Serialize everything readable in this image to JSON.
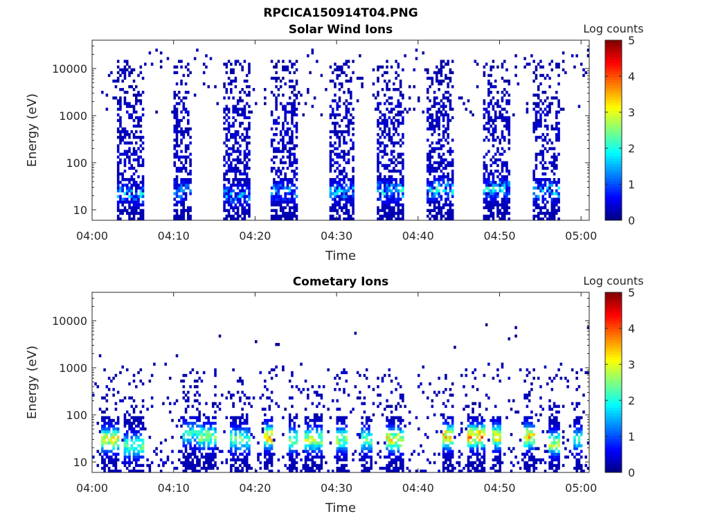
{
  "figure": {
    "title": "RPCICA150914T04.PNG"
  },
  "chart_data": [
    {
      "type": "heatmap",
      "title": "Solar Wind Ions",
      "xlabel": "Time",
      "ylabel": "Energy (eV)",
      "x_range": [
        "04:00",
        "05:01"
      ],
      "x_ticks": [
        "04:00",
        "04:10",
        "04:20",
        "04:30",
        "04:40",
        "04:50",
        "05:00"
      ],
      "y_scale": "log",
      "y_range": [
        6,
        40000
      ],
      "y_ticks": [
        "10",
        "100",
        "1000",
        "10000"
      ],
      "colorbar": {
        "label": "Log counts",
        "range": [
          0,
          5
        ],
        "ticks": [
          "0",
          "1",
          "2",
          "3",
          "4",
          "5"
        ],
        "colormap": "jet"
      },
      "bursts": [
        {
          "start": "04:03",
          "end": "04:06",
          "peak_energy_eV": 22,
          "peak_log_counts": 2.0
        },
        {
          "start": "04:10",
          "end": "04:12",
          "peak_energy_eV": 25,
          "peak_log_counts": 1.6
        },
        {
          "start": "04:16",
          "end": "04:19",
          "peak_energy_eV": 20,
          "peak_log_counts": 1.6
        },
        {
          "start": "04:22",
          "end": "04:25",
          "peak_energy_eV": 25,
          "peak_log_counts": 1.6
        },
        {
          "start": "04:29",
          "end": "04:32",
          "peak_energy_eV": 25,
          "peak_log_counts": 1.8
        },
        {
          "start": "04:35",
          "end": "04:38",
          "peak_energy_eV": 25,
          "peak_log_counts": 2.2
        },
        {
          "start": "04:41",
          "end": "04:44",
          "peak_energy_eV": 28,
          "peak_log_counts": 2.2
        },
        {
          "start": "04:48",
          "end": "04:51",
          "peak_energy_eV": 28,
          "peak_log_counts": 2.2
        },
        {
          "start": "04:54",
          "end": "04:57",
          "peak_energy_eV": 25,
          "peak_log_counts": 2.0
        }
      ]
    },
    {
      "type": "heatmap",
      "title": "Cometary Ions",
      "xlabel": "Time",
      "ylabel": "Energy (eV)",
      "x_range": [
        "04:00",
        "05:01"
      ],
      "x_ticks": [
        "04:00",
        "04:10",
        "04:20",
        "04:30",
        "04:40",
        "04:50",
        "05:00"
      ],
      "y_scale": "log",
      "y_range": [
        6,
        40000
      ],
      "y_ticks": [
        "10",
        "100",
        "1000",
        "10000"
      ],
      "colorbar": {
        "label": "Log counts",
        "range": [
          0,
          5
        ],
        "ticks": [
          "0",
          "1",
          "2",
          "3",
          "4",
          "5"
        ],
        "colormap": "jet"
      },
      "bursts": [
        {
          "start": "04:01",
          "end": "04:03",
          "peak_energy_eV": 30,
          "peak_log_counts": 3.3
        },
        {
          "start": "04:04",
          "end": "04:06",
          "peak_energy_eV": 22,
          "peak_log_counts": 2.5
        },
        {
          "start": "04:11",
          "end": "04:13",
          "peak_energy_eV": 40,
          "peak_log_counts": 2.2
        },
        {
          "start": "04:13",
          "end": "04:15",
          "peak_energy_eV": 35,
          "peak_log_counts": 2.8
        },
        {
          "start": "04:17",
          "end": "04:19",
          "peak_energy_eV": 30,
          "peak_log_counts": 2.5
        },
        {
          "start": "04:21",
          "end": "04:22",
          "peak_energy_eV": 35,
          "peak_log_counts": 3.8
        },
        {
          "start": "04:24",
          "end": "04:25",
          "peak_energy_eV": 30,
          "peak_log_counts": 3.0
        },
        {
          "start": "04:26",
          "end": "04:28",
          "peak_energy_eV": 30,
          "peak_log_counts": 3.0
        },
        {
          "start": "04:30",
          "end": "04:31",
          "peak_energy_eV": 30,
          "peak_log_counts": 2.8
        },
        {
          "start": "04:33",
          "end": "04:34",
          "peak_energy_eV": 30,
          "peak_log_counts": 2.5
        },
        {
          "start": "04:36",
          "end": "04:38",
          "peak_energy_eV": 30,
          "peak_log_counts": 3.5
        },
        {
          "start": "04:43",
          "end": "04:44",
          "peak_energy_eV": 35,
          "peak_log_counts": 3.8
        },
        {
          "start": "04:46",
          "end": "04:48",
          "peak_energy_eV": 35,
          "peak_log_counts": 4.0
        },
        {
          "start": "04:49",
          "end": "04:50",
          "peak_energy_eV": 35,
          "peak_log_counts": 3.7
        },
        {
          "start": "04:53",
          "end": "04:54",
          "peak_energy_eV": 35,
          "peak_log_counts": 3.7
        },
        {
          "start": "04:56",
          "end": "04:57",
          "peak_energy_eV": 25,
          "peak_log_counts": 3.0
        },
        {
          "start": "04:59",
          "end": "05:00",
          "peak_energy_eV": 30,
          "peak_log_counts": 2.2
        }
      ]
    }
  ]
}
